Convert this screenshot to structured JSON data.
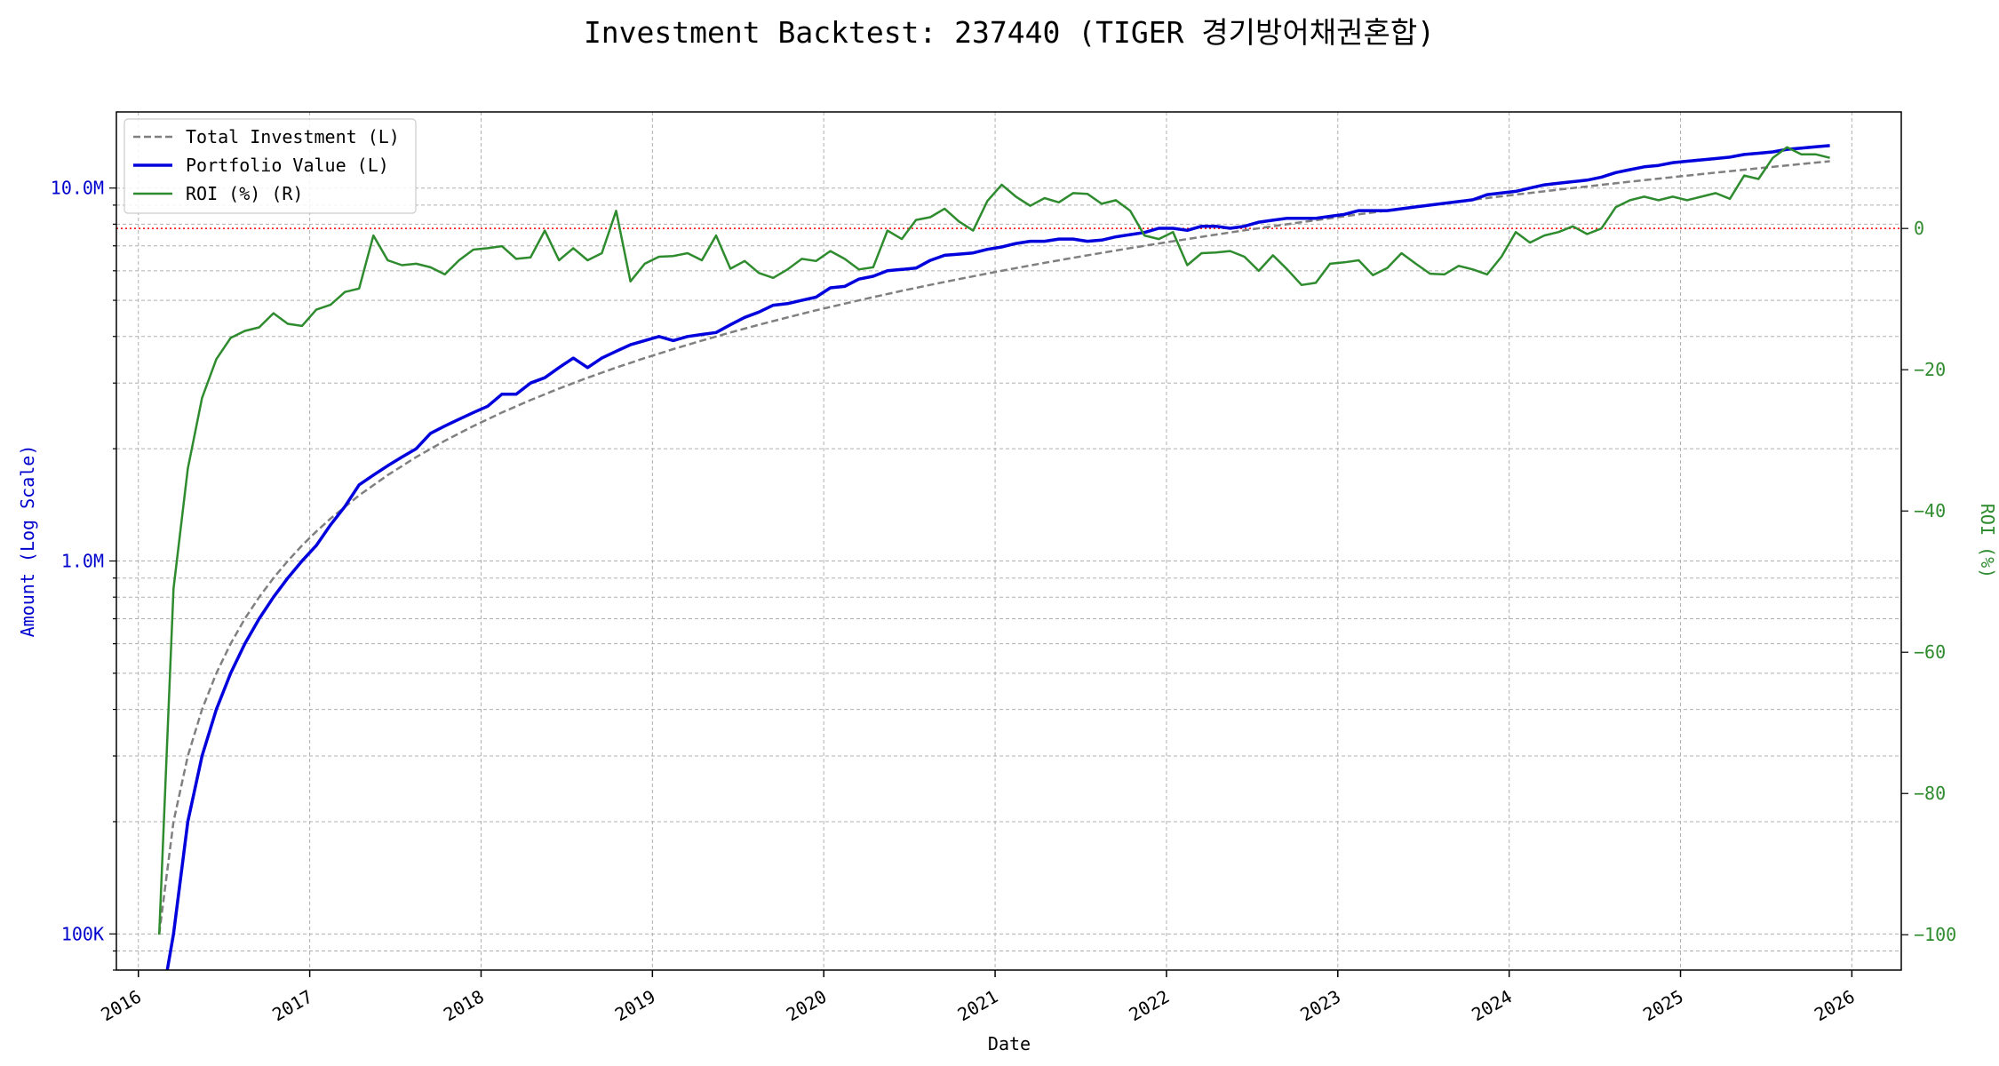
{
  "chart_data": {
    "type": "line",
    "title": "Investment Backtest: 237440 (TIGER 경기방어채권혼합)",
    "xlabel": "Date",
    "ylabel_left": "Amount (Log Scale)",
    "ylabel_right": "ROI (%)",
    "x_ticks": [
      "2016",
      "2017",
      "2018",
      "2019",
      "2020",
      "2021",
      "2022",
      "2023",
      "2024",
      "2025",
      "2026"
    ],
    "y_left_scale": "log",
    "y_left_range": [
      80000,
      16000000
    ],
    "y_left_ticks": [
      {
        "value": 100000,
        "label": "100K"
      },
      {
        "value": 1000000,
        "label": "1.0M"
      },
      {
        "value": 10000000,
        "label": "10.0M"
      }
    ],
    "y_right_range": [
      -105,
      16.5
    ],
    "y_right_ticks": [
      {
        "value": 0,
        "label": "0"
      },
      {
        "value": -20,
        "label": "−20"
      },
      {
        "value": -40,
        "label": "−40"
      },
      {
        "value": -60,
        "label": "−60"
      },
      {
        "value": -80,
        "label": "−80"
      },
      {
        "value": -100,
        "label": "−100"
      }
    ],
    "x_range": [
      "2015-11-15",
      "2026-04-15"
    ],
    "grid": true,
    "legend_position": "top-left",
    "reference_line": {
      "axis": "right",
      "value": 0,
      "color": "#ff0000",
      "style": "dotted"
    },
    "colors": {
      "total_investment": "#808080",
      "portfolio_value": "#0000dd",
      "roi": "#2e8b2e",
      "left_axis": "#0000cc",
      "right_axis": "#2e8b2e"
    },
    "series": [
      {
        "name": "Total Investment (L)",
        "axis": "left",
        "style": "dashed",
        "x": [
          "2016-02",
          "2016-03",
          "2016-04",
          "2016-05",
          "2016-06",
          "2016-07",
          "2016-08",
          "2016-09",
          "2016-10",
          "2016-11",
          "2016-12",
          "2017-01",
          "2017-02",
          "2017-04",
          "2017-06",
          "2017-08",
          "2017-10",
          "2017-12",
          "2018-02",
          "2018-04",
          "2018-06",
          "2018-08",
          "2018-10",
          "2018-12",
          "2019-02",
          "2019-04",
          "2019-06",
          "2019-08",
          "2019-10",
          "2019-12",
          "2020-02",
          "2020-04",
          "2020-06",
          "2020-08",
          "2020-10",
          "2020-12",
          "2021-02",
          "2021-04",
          "2021-06",
          "2021-08",
          "2021-10",
          "2021-12",
          "2022-02",
          "2022-04",
          "2022-06",
          "2022-08",
          "2022-10",
          "2022-12",
          "2023-02",
          "2023-04",
          "2023-06",
          "2023-08",
          "2023-10",
          "2023-12",
          "2024-02",
          "2024-04",
          "2024-06",
          "2024-08",
          "2024-10",
          "2024-12",
          "2025-02",
          "2025-04",
          "2025-06",
          "2025-08",
          "2025-11"
        ],
        "values": [
          100000,
          200000,
          300000,
          400000,
          500000,
          600000,
          700000,
          800000,
          900000,
          1000000,
          1100000,
          1200000,
          1300000,
          1500000,
          1700000,
          1900000,
          2100000,
          2300000,
          2500000,
          2700000,
          2900000,
          3100000,
          3300000,
          3500000,
          3700000,
          3900000,
          4100000,
          4300000,
          4500000,
          4700000,
          4900000,
          5100000,
          5300000,
          5500000,
          5700000,
          5900000,
          6100000,
          6300000,
          6500000,
          6700000,
          6900000,
          7100000,
          7300000,
          7500000,
          7700000,
          7900000,
          8100000,
          8300000,
          8500000,
          8700000,
          8900000,
          9100000,
          9300000,
          9500000,
          9700000,
          9900000,
          10100000,
          10300000,
          10500000,
          10700000,
          10900000,
          11100000,
          11300000,
          11500000,
          11800000
        ]
      },
      {
        "name": "Portfolio Value (L)",
        "axis": "left",
        "style": "solid",
        "x": [
          "2016-02",
          "2016-03",
          "2016-04",
          "2016-05",
          "2016-06",
          "2016-07",
          "2016-08",
          "2016-09",
          "2016-10",
          "2016-11",
          "2016-12",
          "2017-01",
          "2017-02",
          "2017-03",
          "2017-04",
          "2017-05",
          "2017-06",
          "2017-07",
          "2017-08",
          "2017-09",
          "2017-10",
          "2017-11",
          "2017-12",
          "2018-01",
          "2018-02",
          "2018-03",
          "2018-04",
          "2018-05",
          "2018-06",
          "2018-07",
          "2018-08",
          "2018-09",
          "2018-10",
          "2018-11",
          "2018-12",
          "2019-01",
          "2019-02",
          "2019-03",
          "2019-04",
          "2019-05",
          "2019-06",
          "2019-07",
          "2019-08",
          "2019-09",
          "2019-10",
          "2019-11",
          "2019-12",
          "2020-01",
          "2020-02",
          "2020-03",
          "2020-04",
          "2020-05",
          "2020-06",
          "2020-07",
          "2020-08",
          "2020-09",
          "2020-10",
          "2020-11",
          "2020-12",
          "2021-01",
          "2021-02",
          "2021-03",
          "2021-04",
          "2021-05",
          "2021-06",
          "2021-07",
          "2021-08",
          "2021-09",
          "2021-10",
          "2021-11",
          "2021-12",
          "2022-01",
          "2022-02",
          "2022-03",
          "2022-04",
          "2022-05",
          "2022-06",
          "2022-07",
          "2022-08",
          "2022-09",
          "2022-10",
          "2022-11",
          "2022-12",
          "2023-01",
          "2023-02",
          "2023-03",
          "2023-04",
          "2023-05",
          "2023-06",
          "2023-07",
          "2023-08",
          "2023-09",
          "2023-10",
          "2023-11",
          "2023-12",
          "2024-01",
          "2024-02",
          "2024-03",
          "2024-04",
          "2024-05",
          "2024-06",
          "2024-07",
          "2024-08",
          "2024-09",
          "2024-10",
          "2024-11",
          "2024-12",
          "2025-01",
          "2025-02",
          "2025-03",
          "2025-04",
          "2025-05",
          "2025-06",
          "2025-07",
          "2025-08",
          "2025-09",
          "2025-10",
          "2025-11"
        ],
        "values": [
          60000,
          100000,
          200000,
          300000,
          400000,
          500000,
          600000,
          700000,
          800000,
          900000,
          1000000,
          1100000,
          1250000,
          1400000,
          1600000,
          1700000,
          1800000,
          1900000,
          2000000,
          2200000,
          2300000,
          2400000,
          2500000,
          2600000,
          2800000,
          2800000,
          3000000,
          3100000,
          3300000,
          3500000,
          3300000,
          3500000,
          3650000,
          3800000,
          3900000,
          4000000,
          3900000,
          4000000,
          4050000,
          4100000,
          4300000,
          4500000,
          4650000,
          4850000,
          4900000,
          5000000,
          5100000,
          5400000,
          5450000,
          5700000,
          5800000,
          6000000,
          6050000,
          6100000,
          6400000,
          6600000,
          6650000,
          6700000,
          6850000,
          6950000,
          7100000,
          7200000,
          7200000,
          7300000,
          7300000,
          7200000,
          7250000,
          7400000,
          7500000,
          7600000,
          7800000,
          7800000,
          7700000,
          7900000,
          7900000,
          7800000,
          7900000,
          8100000,
          8200000,
          8300000,
          8300000,
          8300000,
          8400000,
          8500000,
          8700000,
          8700000,
          8700000,
          8800000,
          8900000,
          9000000,
          9100000,
          9200000,
          9300000,
          9600000,
          9700000,
          9800000,
          10000000,
          10200000,
          10300000,
          10400000,
          10500000,
          10700000,
          11000000,
          11200000,
          11400000,
          11500000,
          11700000,
          11800000,
          11900000,
          12000000,
          12100000,
          12300000,
          12400000,
          12500000,
          12700000,
          12800000,
          12900000,
          13000000
        ]
      },
      {
        "name": "ROI (%) (R)",
        "axis": "right",
        "style": "solid",
        "x": [
          "2016-02",
          "2016-03",
          "2016-04",
          "2016-05",
          "2016-06",
          "2016-07",
          "2016-08",
          "2016-09",
          "2016-10",
          "2016-11",
          "2016-12",
          "2017-01",
          "2017-02",
          "2017-03",
          "2017-04",
          "2017-05",
          "2017-06",
          "2017-07",
          "2017-08",
          "2017-09",
          "2017-10",
          "2017-11",
          "2017-12",
          "2018-01",
          "2018-02",
          "2018-03",
          "2018-04",
          "2018-05",
          "2018-06",
          "2018-07",
          "2018-08",
          "2018-09",
          "2018-10",
          "2018-11",
          "2018-12",
          "2019-01",
          "2019-02",
          "2019-03",
          "2019-04",
          "2019-05",
          "2019-06",
          "2019-07",
          "2019-08",
          "2019-09",
          "2019-10",
          "2019-11",
          "2019-12",
          "2020-01",
          "2020-02",
          "2020-03",
          "2020-04",
          "2020-05",
          "2020-06",
          "2020-07",
          "2020-08",
          "2020-09",
          "2020-10",
          "2020-11",
          "2020-12",
          "2021-01",
          "2021-02",
          "2021-03",
          "2021-04",
          "2021-05",
          "2021-06",
          "2021-07",
          "2021-08",
          "2021-09",
          "2021-10",
          "2021-11",
          "2021-12",
          "2022-01",
          "2022-02",
          "2022-03",
          "2022-04",
          "2022-05",
          "2022-06",
          "2022-07",
          "2022-08",
          "2022-09",
          "2022-10",
          "2022-11",
          "2022-12",
          "2023-01",
          "2023-02",
          "2023-03",
          "2023-04",
          "2023-05",
          "2023-06",
          "2023-07",
          "2023-08",
          "2023-09",
          "2023-10",
          "2023-11",
          "2023-12",
          "2024-01",
          "2024-02",
          "2024-03",
          "2024-04",
          "2024-05",
          "2024-06",
          "2024-07",
          "2024-08",
          "2024-09",
          "2024-10",
          "2024-11",
          "2024-12",
          "2025-01",
          "2025-02",
          "2025-03",
          "2025-04",
          "2025-05",
          "2025-06",
          "2025-07",
          "2025-08",
          "2025-09",
          "2025-10",
          "2025-11"
        ],
        "values": [
          -100,
          -51,
          -34,
          -24,
          -18.5,
          -15.5,
          -14.5,
          -14,
          -12,
          -13.5,
          -13.8,
          -11.5,
          -10.8,
          -9,
          -8.5,
          -1,
          -4.5,
          -5.2,
          -5,
          -5.5,
          -6.5,
          -4.5,
          -3,
          -2.8,
          -2.5,
          -4.3,
          -4.1,
          -0.3,
          -4.5,
          -2.8,
          -4.5,
          -3.5,
          2.5,
          -7.5,
          -5,
          -4,
          -3.9,
          -3.5,
          -4.5,
          -1,
          -5.7,
          -4.6,
          -6.3,
          -7,
          -5.8,
          -4.3,
          -4.6,
          -3.2,
          -4.3,
          -5.8,
          -5.5,
          -0.3,
          -1.5,
          1.2,
          1.6,
          2.8,
          1,
          -0.3,
          3.9,
          6.2,
          4.5,
          3.2,
          4.3,
          3.7,
          5,
          4.9,
          3.5,
          4,
          2.5,
          -1,
          -1.5,
          -0.5,
          -5.2,
          -3.5,
          -3.4,
          -3.2,
          -4,
          -6,
          -3.8,
          -5.8,
          -8,
          -7.7,
          -5,
          -4.8,
          -4.5,
          -6.6,
          -5.6,
          -3.5,
          -5,
          -6.4,
          -6.5,
          -5.3,
          -5.8,
          -6.5,
          -4,
          -0.5,
          -2,
          -1,
          -0.5,
          0.3,
          -0.8,
          0,
          3,
          4,
          4.5,
          4,
          4.5,
          4,
          4.5,
          5,
          4.2,
          7.5,
          7,
          10,
          11.5,
          10.5,
          10.5,
          10
        ]
      }
    ]
  }
}
